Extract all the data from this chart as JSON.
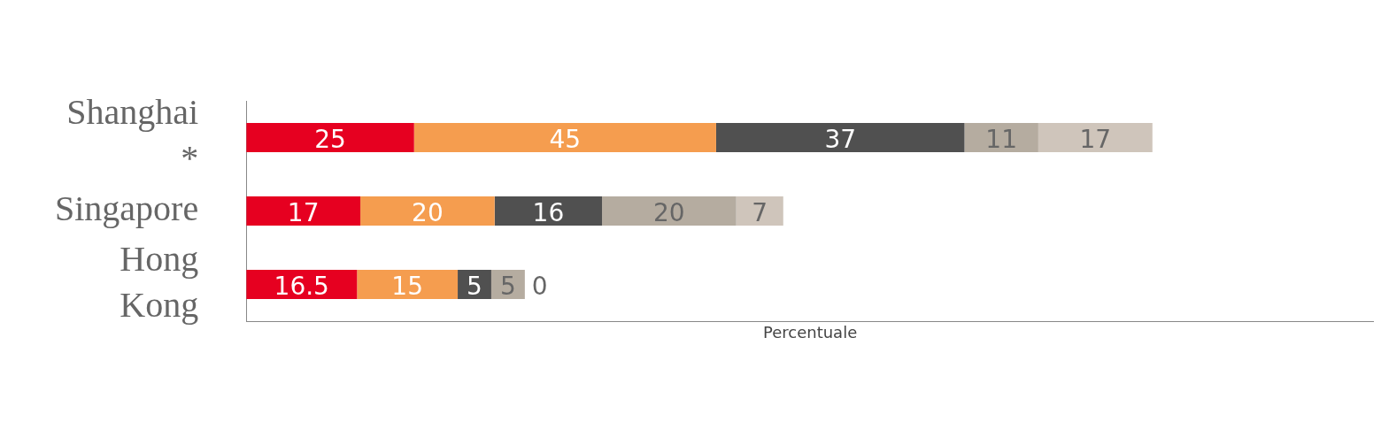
{
  "chart_data": {
    "type": "bar",
    "orientation": "horizontal",
    "stacked": true,
    "xlabel": "Percentuale",
    "categories": [
      "Shanghai *",
      "Singapore",
      "Hong Kong"
    ],
    "series": [
      {
        "color": "#e60020",
        "values": [
          25,
          17,
          16.5
        ]
      },
      {
        "color": "#f59d4f",
        "values": [
          45,
          20,
          15
        ]
      },
      {
        "color": "#505050",
        "values": [
          37,
          16,
          5
        ]
      },
      {
        "color": "#b5aca0",
        "values": [
          11,
          20,
          5
        ]
      },
      {
        "color": "#cfc5bb",
        "values": [
          17,
          7,
          0
        ]
      }
    ],
    "xlim": [
      0,
      168
    ],
    "data_labels": true,
    "grid": false,
    "legend": false,
    "tick_labels": "y"
  }
}
